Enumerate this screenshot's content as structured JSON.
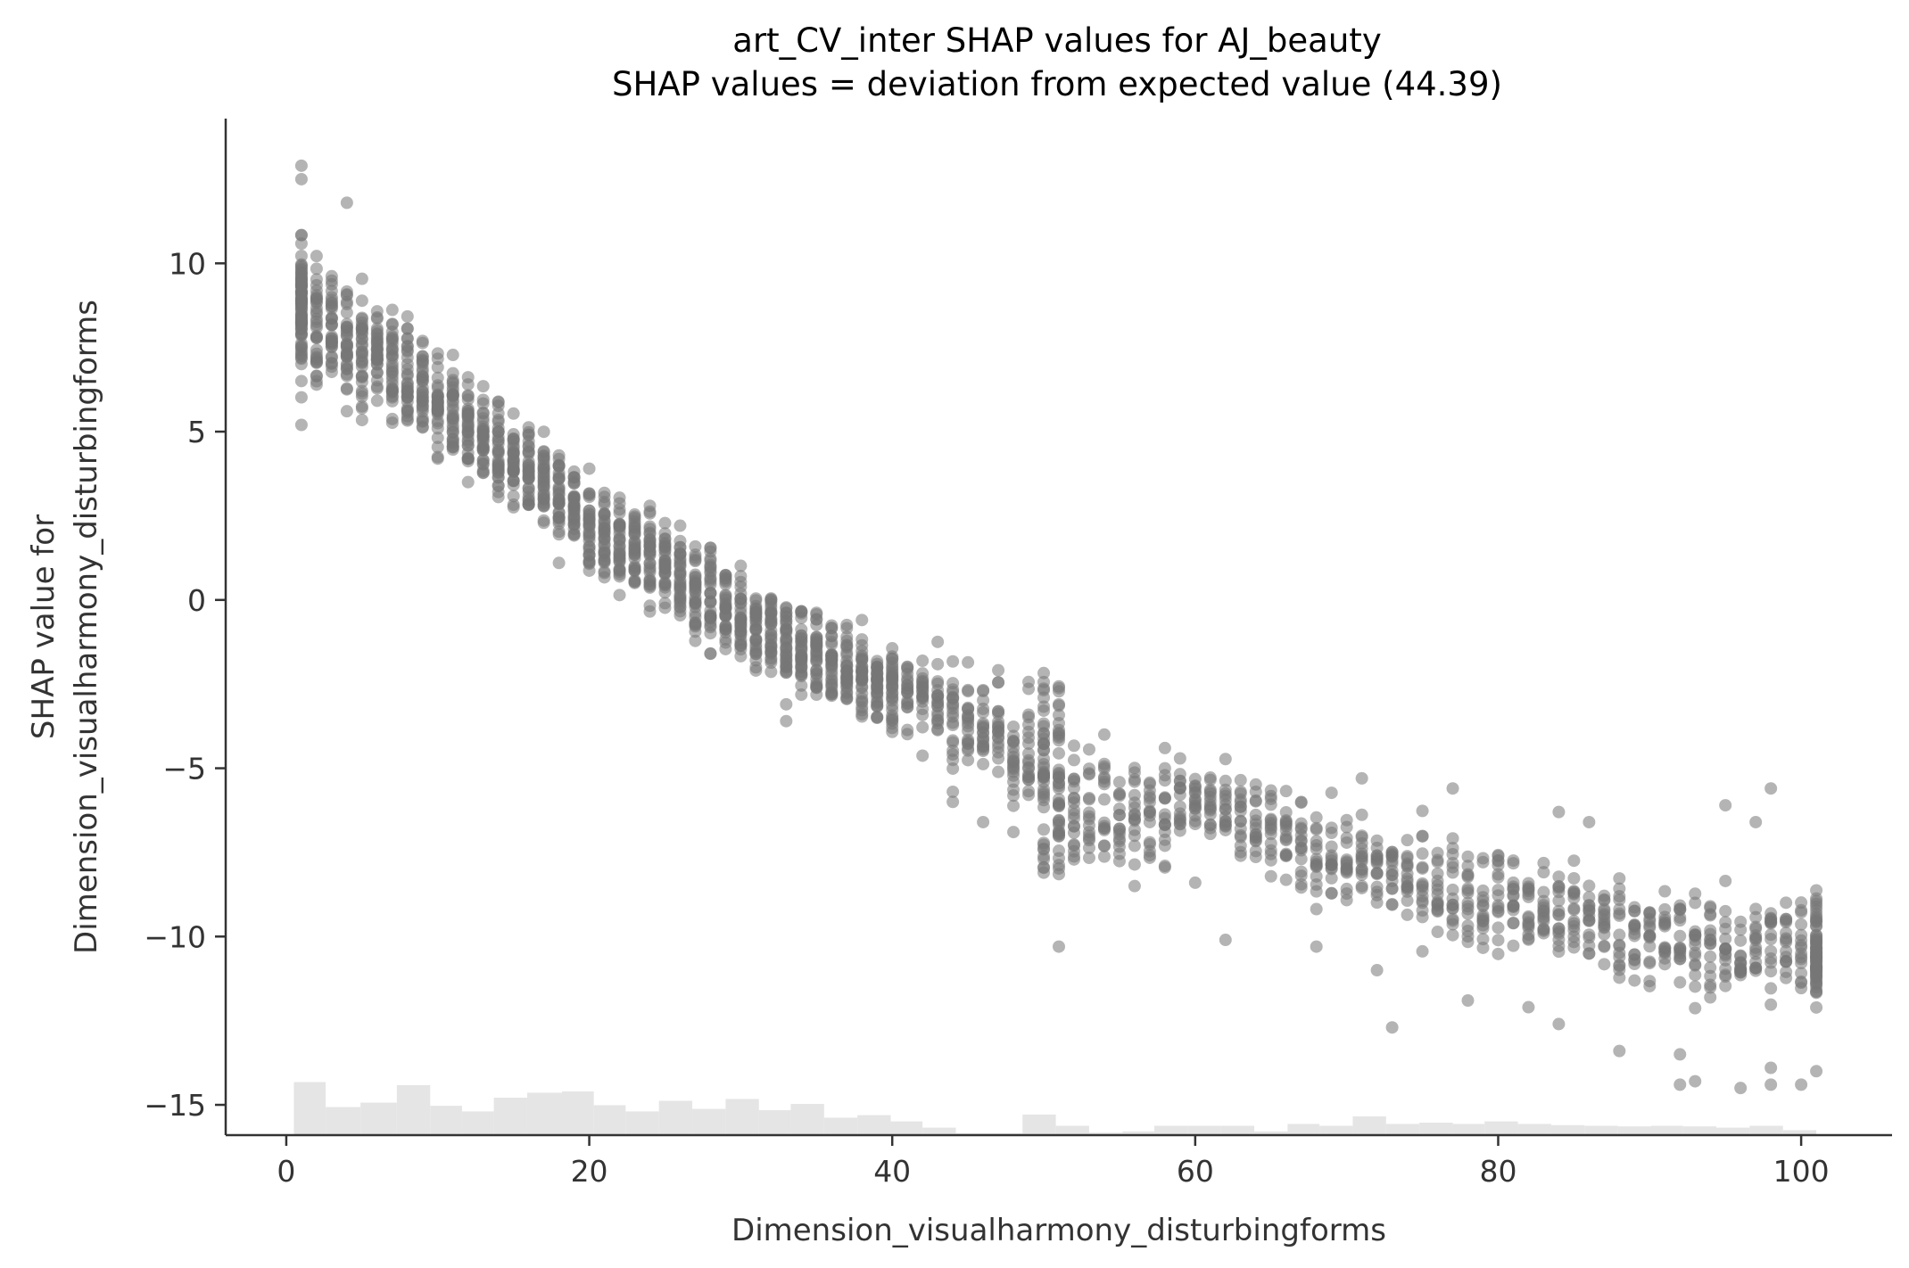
{
  "chart_data": {
    "type": "scatter",
    "title": "art_CV_inter SHAP values for AJ_beauty",
    "subtitle": "SHAP values = deviation from expected value (44.39)",
    "xlabel": "Dimension_visualharmony_disturbingforms",
    "ylabel_line1": "SHAP value for",
    "ylabel_line2": "Dimension_visualharmony_disturbingforms",
    "xlim": [
      -4,
      106
    ],
    "ylim": [
      -15.9,
      14.3
    ],
    "xticks": [
      0,
      20,
      40,
      60,
      80,
      100
    ],
    "xtick_labels": [
      "0",
      "20",
      "40",
      "60",
      "80",
      "100"
    ],
    "yticks": [
      -15,
      -10,
      -5,
      0,
      5,
      10
    ],
    "ytick_labels": [
      "−15",
      "−10",
      "−5",
      "0",
      "5",
      "10"
    ],
    "grid": false,
    "legend": "none",
    "point_color": "#777777",
    "hist_color": "#e5e5e5",
    "trend": [
      {
        "x": 1,
        "y": 8.6,
        "spread": 1.3
      },
      {
        "x": 3,
        "y": 7.9,
        "spread": 1.1
      },
      {
        "x": 5,
        "y": 7.5,
        "spread": 1.1
      },
      {
        "x": 7,
        "y": 7.0,
        "spread": 1.0
      },
      {
        "x": 10,
        "y": 5.9,
        "spread": 0.9
      },
      {
        "x": 13,
        "y": 4.8,
        "spread": 0.9
      },
      {
        "x": 16,
        "y": 3.7,
        "spread": 0.9
      },
      {
        "x": 20,
        "y": 2.2,
        "spread": 0.9
      },
      {
        "x": 25,
        "y": 1.0,
        "spread": 0.9
      },
      {
        "x": 30,
        "y": -0.5,
        "spread": 0.9
      },
      {
        "x": 35,
        "y": -1.7,
        "spread": 0.9
      },
      {
        "x": 40,
        "y": -2.6,
        "spread": 0.8
      },
      {
        "x": 45,
        "y": -3.5,
        "spread": 0.9
      },
      {
        "x": 50,
        "y": -5.0,
        "spread": 1.9
      },
      {
        "x": 55,
        "y": -6.5,
        "spread": 1.0
      },
      {
        "x": 60,
        "y": -6.0,
        "spread": 0.9
      },
      {
        "x": 65,
        "y": -7.0,
        "spread": 0.9
      },
      {
        "x": 70,
        "y": -7.8,
        "spread": 0.9
      },
      {
        "x": 75,
        "y": -8.4,
        "spread": 1.0
      },
      {
        "x": 80,
        "y": -8.9,
        "spread": 1.0
      },
      {
        "x": 85,
        "y": -9.4,
        "spread": 1.0
      },
      {
        "x": 90,
        "y": -10.0,
        "spread": 1.0
      },
      {
        "x": 95,
        "y": -10.4,
        "spread": 1.0
      },
      {
        "x": 101,
        "y": -10.3,
        "spread": 1.1
      }
    ],
    "outliers": [
      {
        "x": 1,
        "y": 12.9
      },
      {
        "x": 1,
        "y": 12.5
      },
      {
        "x": 1,
        "y": 5.2
      },
      {
        "x": 4,
        "y": 11.8
      },
      {
        "x": 12,
        "y": 3.5
      },
      {
        "x": 18,
        "y": 1.1
      },
      {
        "x": 33,
        "y": -3.6
      },
      {
        "x": 33,
        "y": -3.1
      },
      {
        "x": 44,
        "y": -5.7
      },
      {
        "x": 44,
        "y": -6.0
      },
      {
        "x": 46,
        "y": -6.6
      },
      {
        "x": 48,
        "y": -5.4
      },
      {
        "x": 51,
        "y": -10.3
      },
      {
        "x": 56,
        "y": -8.5
      },
      {
        "x": 60,
        "y": -8.4
      },
      {
        "x": 62,
        "y": -10.1
      },
      {
        "x": 68,
        "y": -10.3
      },
      {
        "x": 72,
        "y": -11.0
      },
      {
        "x": 73,
        "y": -12.7
      },
      {
        "x": 78,
        "y": -11.9
      },
      {
        "x": 82,
        "y": -12.1
      },
      {
        "x": 84,
        "y": -12.6
      },
      {
        "x": 88,
        "y": -13.4
      },
      {
        "x": 92,
        "y": -13.5
      },
      {
        "x": 92,
        "y": -14.4
      },
      {
        "x": 93,
        "y": -14.3
      },
      {
        "x": 96,
        "y": -14.5
      },
      {
        "x": 98,
        "y": -14.4
      },
      {
        "x": 98,
        "y": -13.9
      },
      {
        "x": 100,
        "y": -14.4
      },
      {
        "x": 101,
        "y": -14.0
      },
      {
        "x": 98,
        "y": -5.6
      },
      {
        "x": 95,
        "y": -6.1
      },
      {
        "x": 97,
        "y": -6.6
      },
      {
        "x": 77,
        "y": -5.6
      },
      {
        "x": 84,
        "y": -6.3
      },
      {
        "x": 86,
        "y": -6.6
      },
      {
        "x": 71,
        "y": -5.3
      },
      {
        "x": 58,
        "y": -4.4
      },
      {
        "x": 54,
        "y": -4.0
      }
    ],
    "histogram": {
      "bin_edges": [
        0.5,
        2.6,
        4.9,
        7.3,
        9.5,
        11.6,
        13.7,
        15.9,
        18.2,
        20.3,
        22.4,
        24.6,
        26.8,
        29.0,
        31.2,
        33.3,
        35.5,
        37.7,
        39.9,
        42.0,
        44.2,
        46.4,
        48.6,
        50.8,
        53.0,
        55.2,
        57.3,
        59.5,
        61.7,
        63.9,
        66.1,
        68.2,
        70.4,
        72.6,
        74.8,
        77.0,
        79.1,
        81.3,
        83.5,
        85.7,
        87.9,
        90.1,
        92.2,
        94.4,
        96.6,
        98.8,
        101.0
      ],
      "heights": [
        0.85,
        0.45,
        0.52,
        0.8,
        0.47,
        0.38,
        0.6,
        0.68,
        0.7,
        0.48,
        0.38,
        0.55,
        0.42,
        0.58,
        0.4,
        0.5,
        0.28,
        0.32,
        0.22,
        0.12,
        0.03,
        0.03,
        0.33,
        0.15,
        0.04,
        0.06,
        0.15,
        0.15,
        0.15,
        0.06,
        0.18,
        0.15,
        0.3,
        0.18,
        0.2,
        0.18,
        0.22,
        0.18,
        0.16,
        0.15,
        0.14,
        0.15,
        0.14,
        0.12,
        0.15,
        0.08,
        0.4
      ]
    }
  }
}
